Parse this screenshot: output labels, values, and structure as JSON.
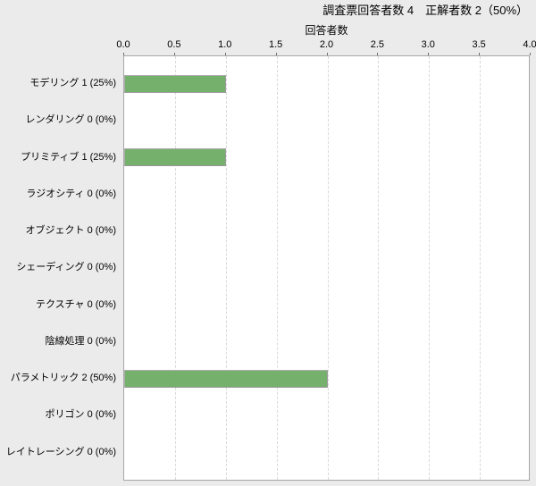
{
  "header": {
    "title": "調査票回答者数 4　正解者数 2（50%）"
  },
  "chart_data": {
    "type": "bar",
    "orientation": "horizontal",
    "title": "調査票回答者数 4　正解者数 2（50%）",
    "xlabel": "回答者数",
    "ylabel": "",
    "categories": [
      "モデリング 1 (25%)",
      "レンダリング 0 (0%)",
      "プリミティブ 1 (25%)",
      "ラジオシティ 0 (0%)",
      "オブジェクト 0 (0%)",
      "シェーディング 0 (0%)",
      "テクスチャ 0 (0%)",
      "陰線処理 0 (0%)",
      "パラメトリック 2 (50%)",
      "ポリゴン 0 (0%)",
      "レイトレーシング 0 (0%)"
    ],
    "values": [
      1,
      0,
      1,
      0,
      0,
      0,
      0,
      0,
      2,
      0,
      0
    ],
    "xlim": [
      0.0,
      4.0
    ],
    "xticks": [
      0.0,
      0.5,
      1.0,
      1.5,
      2.0,
      2.5,
      3.0,
      3.5,
      4.0
    ],
    "xtick_labels": [
      "0.0",
      "0.5",
      "1.0",
      "1.5",
      "2.0",
      "2.5",
      "3.0",
      "3.5",
      "4.0"
    ],
    "grid": "vertical-dashed",
    "legend": "none",
    "axis_position": "top",
    "colors": {
      "bar_fill": "#75b06c",
      "bar_border": "#b0b0b0",
      "plot_background": "#ffffff",
      "page_background": "#ebebeb",
      "plot_border": "#a6a6a6",
      "gridline": "#d9d9d9",
      "text": "#000000"
    }
  }
}
